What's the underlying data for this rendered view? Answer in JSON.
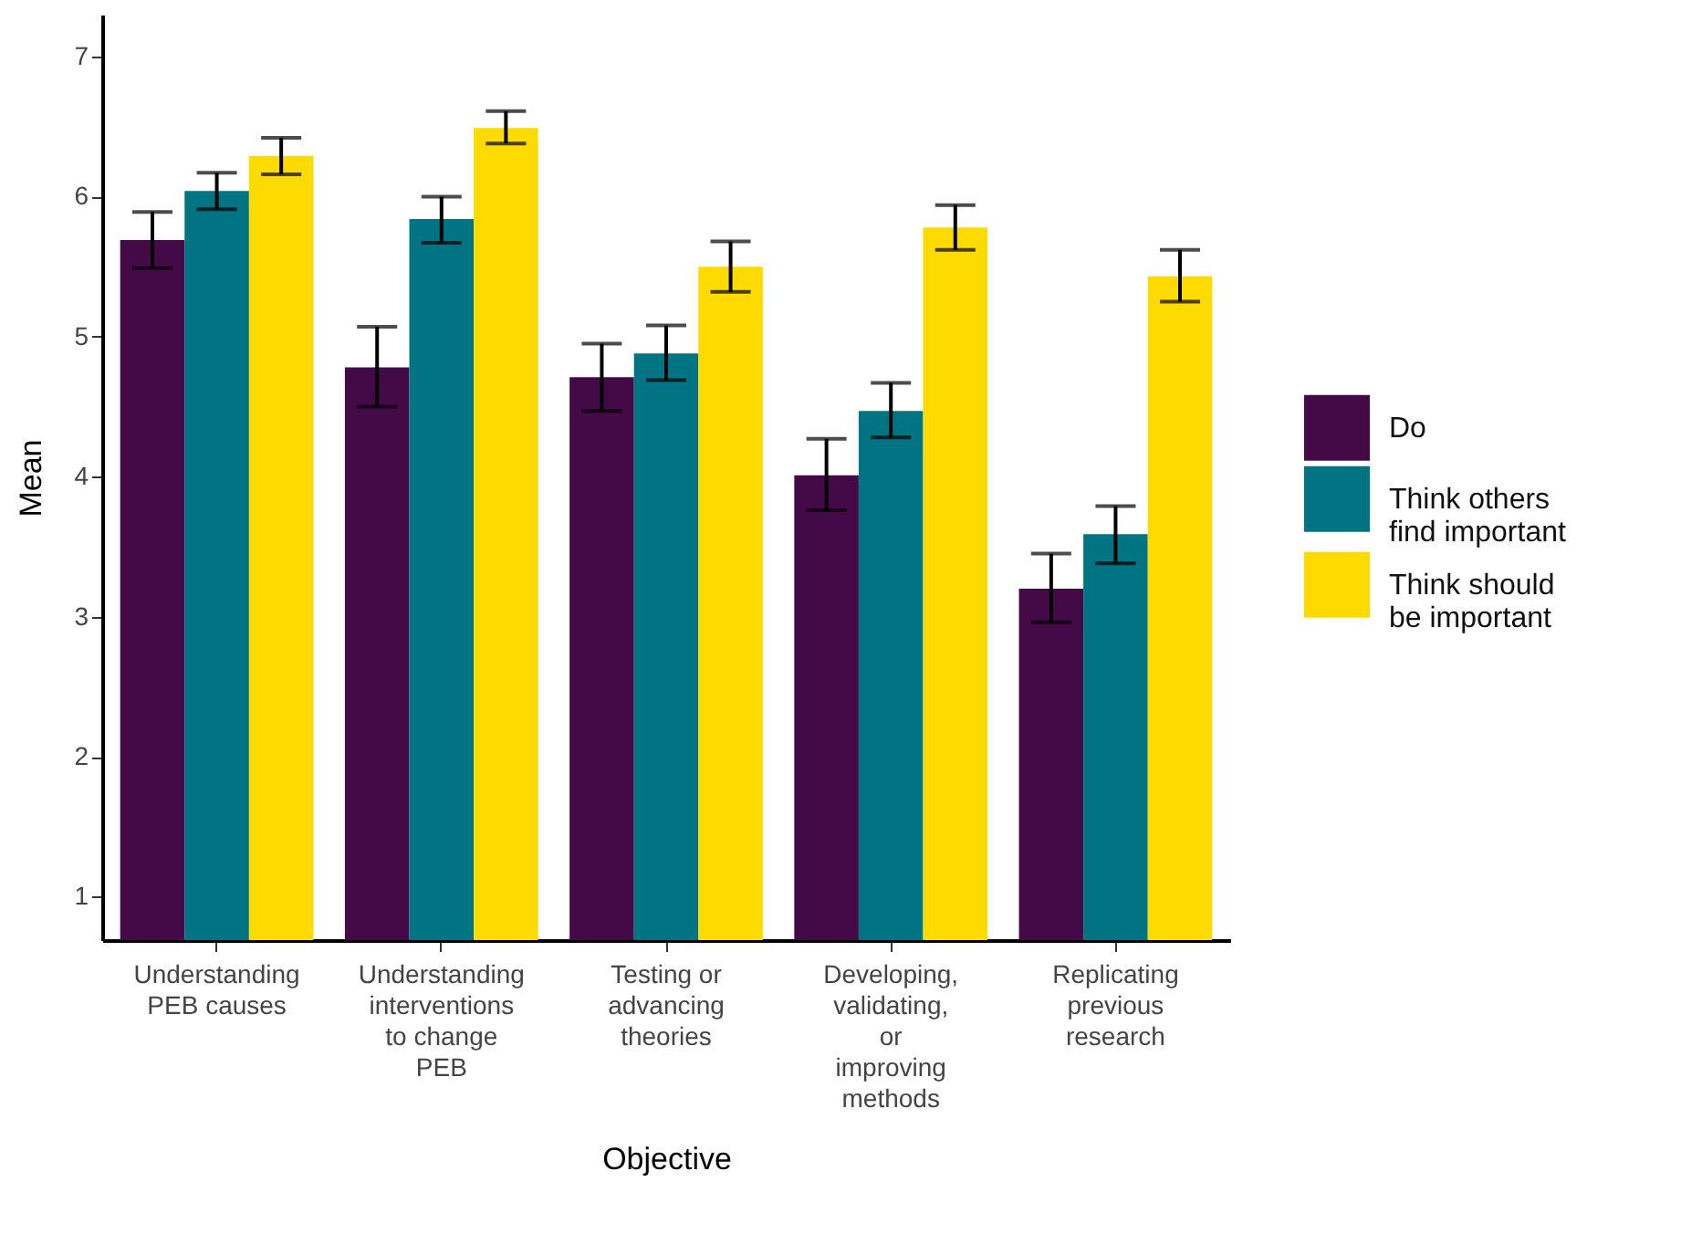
{
  "chart_data": {
    "type": "bar",
    "categories": [
      "Understanding\nPEB causes",
      "Understanding\ninterventions\nto change\nPEB",
      "Testing or\nadvancing\ntheories",
      "Developing,\nvalidating,\nor\nimproving\nmethods",
      "Replicating\nprevious\nresearch"
    ],
    "series": [
      {
        "name": "Do",
        "color": "#440a48",
        "values": [
          5.69,
          4.78,
          4.71,
          4.01,
          3.2
        ],
        "errors": [
          [
            5.49,
            5.89
          ],
          [
            4.5,
            5.07
          ],
          [
            4.47,
            4.95
          ],
          [
            3.76,
            4.27
          ],
          [
            2.96,
            3.45
          ]
        ]
      },
      {
        "name": "Think others\nfind important",
        "color": "#007482",
        "values": [
          6.04,
          5.84,
          4.88,
          4.47,
          3.59
        ],
        "errors": [
          [
            5.91,
            6.17
          ],
          [
            5.67,
            6.0
          ],
          [
            4.69,
            5.08
          ],
          [
            4.28,
            4.67
          ],
          [
            3.38,
            3.79
          ]
        ]
      },
      {
        "name": "Think should\nbe important",
        "color": "#fddb00",
        "values": [
          6.29,
          6.49,
          5.5,
          5.78,
          5.43
        ],
        "errors": [
          [
            6.16,
            6.42
          ],
          [
            6.38,
            6.61
          ],
          [
            5.32,
            5.68
          ],
          [
            5.62,
            5.94
          ],
          [
            5.25,
            5.62
          ]
        ]
      }
    ],
    "xlabel": "Objective",
    "ylabel": "Mean",
    "ylim": [
      0.69,
      7.3
    ],
    "yticks": [
      1,
      2,
      3,
      4,
      5,
      6,
      7
    ],
    "grid": false,
    "legend": "right"
  }
}
